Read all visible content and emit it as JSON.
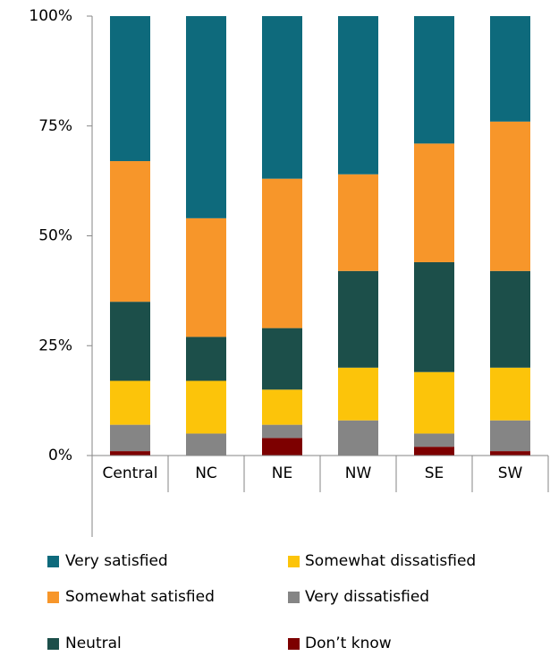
{
  "chart_data": {
    "type": "bar",
    "stacked": true,
    "categories": [
      "Central",
      "NC",
      "NE",
      "NW",
      "SE",
      "SW"
    ],
    "series": [
      {
        "name": "Very satisfied",
        "color": "#0e6a7c",
        "values": [
          33,
          46,
          37,
          36,
          29,
          24
        ]
      },
      {
        "name": "Somewhat satisfied",
        "color": "#f7962a",
        "values": [
          32,
          27,
          34,
          22,
          27,
          34
        ]
      },
      {
        "name": "Neutral",
        "color": "#1c4f4a",
        "values": [
          18,
          10,
          14,
          22,
          25,
          22
        ]
      },
      {
        "name": "Somewhat dissatisfied",
        "color": "#fcc40a",
        "values": [
          10,
          12,
          8,
          12,
          14,
          12
        ]
      },
      {
        "name": "Very dissatisfied",
        "color": "#858585",
        "values": [
          6,
          5,
          3,
          8,
          3,
          7
        ]
      },
      {
        "name": "Don’t know",
        "color": "#7d0000",
        "values": [
          1,
          0,
          4,
          0,
          2,
          1
        ]
      }
    ],
    "ylim": [
      0,
      100
    ],
    "yticks": [
      {
        "value": 0,
        "label": "0%"
      },
      {
        "value": 25,
        "label": "25%"
      },
      {
        "value": 50,
        "label": "50%"
      },
      {
        "value": 75,
        "label": "75%"
      },
      {
        "value": 100,
        "label": "100%"
      }
    ]
  }
}
